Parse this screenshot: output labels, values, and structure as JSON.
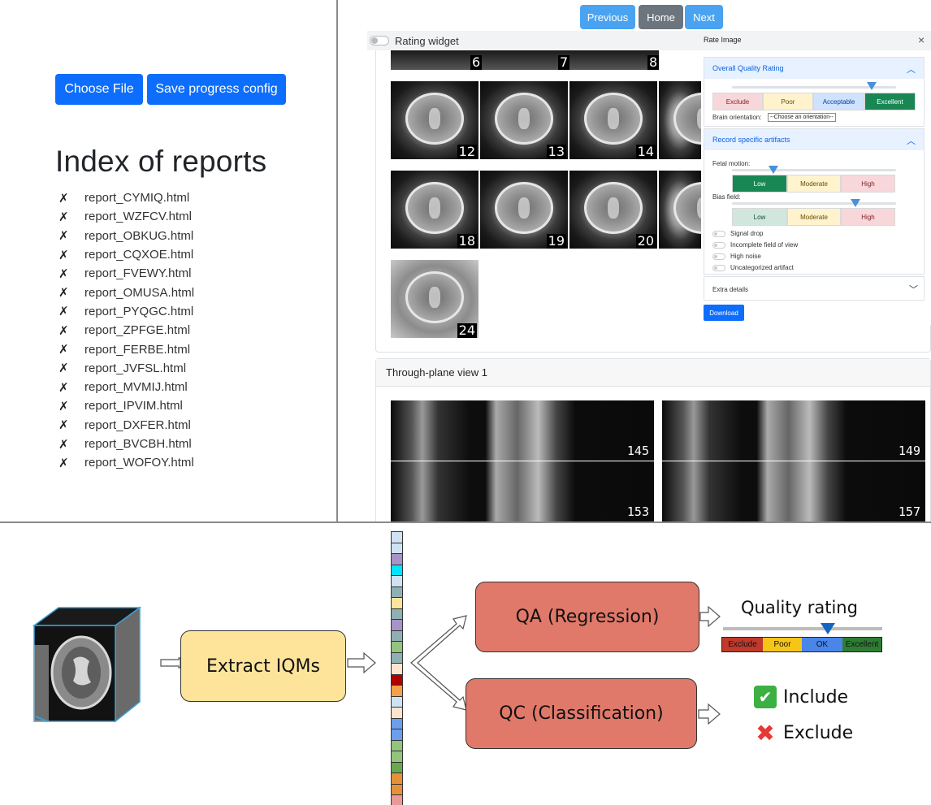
{
  "left_panel": {
    "choose_file_label": "Choose File",
    "save_config_label": "Save progress config",
    "index_title": "Index of reports",
    "status_mark": "✗",
    "reports": [
      "report_CYMIQ.html",
      "report_WZFCV.html",
      "report_OBKUG.html",
      "report_CQXOE.html",
      "report_FVEWY.html",
      "report_OMUSA.html",
      "report_PYQGC.html",
      "report_ZPFGE.html",
      "report_FERBE.html",
      "report_JVFSL.html",
      "report_MVMIJ.html",
      "report_IPVIM.html",
      "report_DXFER.html",
      "report_BVCBH.html",
      "report_WOFOY.html"
    ]
  },
  "report_viewer": {
    "nav": {
      "previous": "Previous",
      "home": "Home",
      "next": "Next"
    },
    "rating_widget_label": "Rating widget",
    "slice_numbers_top": [
      "6",
      "7",
      "8"
    ],
    "slice_numbers": [
      "12",
      "13",
      "14",
      "18",
      "19",
      "20",
      "24"
    ],
    "rate_panel": {
      "title": "Rate Image",
      "close": "×",
      "overall": {
        "heading": "Overall Quality Rating",
        "options": [
          "Exclude",
          "Poor",
          "Acceptable",
          "Excellent"
        ],
        "selected": "Excellent",
        "slider_value": 0.85,
        "orientation_label": "Brain orientation:",
        "orientation_value": "--Choose an orientation--"
      },
      "artifacts": {
        "heading": "Record specific artifacts",
        "fetal_motion_label": "Fetal motion:",
        "fetal_motion_options": [
          "Low",
          "Moderate",
          "High"
        ],
        "fetal_motion_selected": "Low",
        "fetal_motion_slider": 0.25,
        "bias_field_label": "Bias field:",
        "bias_field_options": [
          "Low",
          "Moderate",
          "High"
        ],
        "bias_field_slider": 0.75,
        "toggles": [
          "Signal drop",
          "Incomplete field of view",
          "High noise",
          "Uncategorized artifact"
        ]
      },
      "extra_details": "Extra details",
      "download": "Download"
    },
    "through_plane": {
      "title": "Through-plane view 1",
      "slices": [
        "145",
        "149",
        "153",
        "157"
      ]
    }
  },
  "pipeline": {
    "extract": "Extract IQMs",
    "qa": "QA (Regression)",
    "qc": "QC (Classification)",
    "quality_rating_title": "Quality rating",
    "rating_scale": [
      "Exclude",
      "Poor",
      "OK",
      "Excellent"
    ],
    "rating_colors": [
      "#c0392b",
      "#f5c518",
      "#4a86e8",
      "#2e7d32"
    ],
    "rating_value": 0.66,
    "include_label": "Include",
    "exclude_label": "Exclude",
    "feature_colors": [
      "#cfe2f3",
      "#cfe2f3",
      "#a893c9",
      "#00e5ff",
      "#cfe2f3",
      "#8fb0b3",
      "#fde49a",
      "#8fb0b3",
      "#a893c9",
      "#8fb0b3",
      "#93c47d",
      "#8fb0b3",
      "#fce5cd",
      "#b20000",
      "#f4a04a",
      "#cfe2f3",
      "#fce5cd",
      "#6d9eeb",
      "#6d9eeb",
      "#93c47d",
      "#93c47d",
      "#6aa84f",
      "#e69138",
      "#e69138",
      "#ea9999",
      "#fde49a",
      "#8fb0b3"
    ]
  }
}
